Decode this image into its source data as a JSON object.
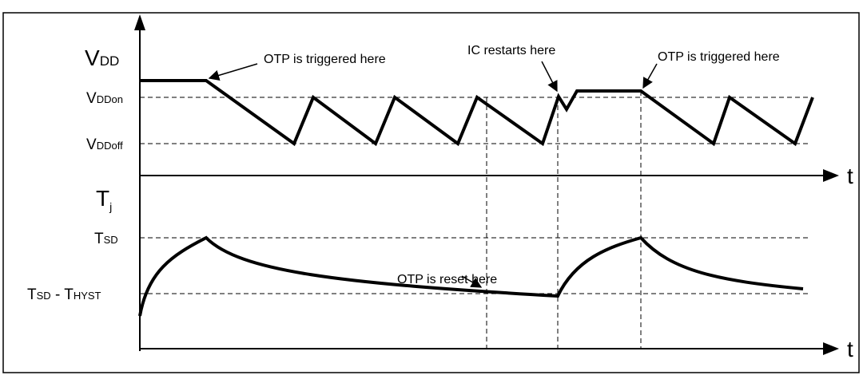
{
  "vdd_axis": {
    "label": {
      "main": "V",
      "sub": "DD"
    },
    "levels": [
      {
        "main": "V",
        "sub": "DDon"
      },
      {
        "main": "V",
        "sub": "DDoff"
      }
    ],
    "time": "t"
  },
  "tj_axis": {
    "label": {
      "main": "T",
      "sub": "j"
    },
    "levels": [
      {
        "main": "T",
        "sub": "SD"
      },
      {
        "main": "T",
        "sub": "SD",
        "tail_main": " - T",
        "tail_sub": "HYST"
      }
    ],
    "time": "t"
  },
  "annotations": [
    "OTP is triggered here",
    "IC restarts here",
    "OTP is triggered here",
    "OTP is reset here"
  ]
}
